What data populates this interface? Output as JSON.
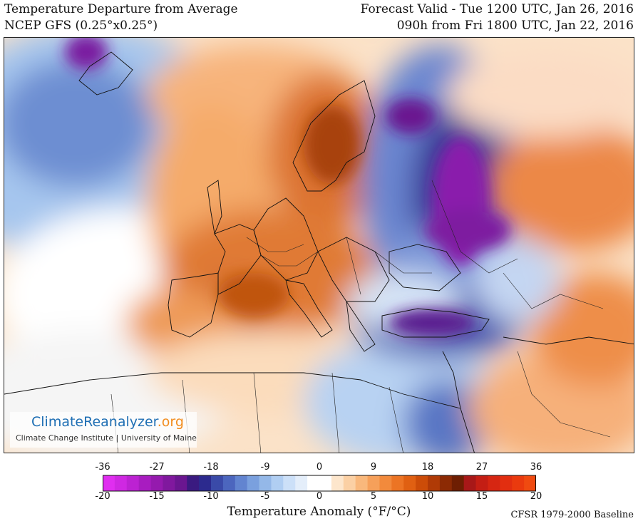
{
  "header": {
    "title": "Temperature Departure from Average",
    "model": "NCEP GFS (0.25°x0.25°)",
    "valid": "Forecast Valid - Tue 1200 UTC, Jan 26, 2016",
    "lead": "090h from Fri 1800 UTC, Jan 22, 2016"
  },
  "logo": {
    "main": "ClimateReanalyzer",
    "domain": ".org",
    "sub": "Climate Change Institute | University of Maine"
  },
  "colorbar": {
    "title": "Temperature Anomaly (°F/°C)",
    "fahrenheit_labels": [
      "-36",
      "-27",
      "-18",
      "-9",
      "0",
      "9",
      "18",
      "27",
      "36"
    ],
    "celsius_labels": [
      "-20",
      "-15",
      "-10",
      "-5",
      "0",
      "5",
      "10",
      "15",
      "20"
    ],
    "colors": [
      "#e02ef0",
      "#cf28e2",
      "#bc22d2",
      "#a81cc0",
      "#951aae",
      "#80189e",
      "#6a1690",
      "#3a1a80",
      "#2c2a8e",
      "#3a4aa8",
      "#4c66be",
      "#6284d0",
      "#7aa0de",
      "#94b8e8",
      "#b0cef2",
      "#cce0f8",
      "#e4eefa",
      "#ffffff",
      "#ffffff",
      "#fde6cc",
      "#fbd0a4",
      "#f9b87c",
      "#f6a05a",
      "#f28a3c",
      "#ec7424",
      "#e06012",
      "#cc4c08",
      "#b03a06",
      "#8c2a04",
      "#6e1e02",
      "#a81818",
      "#c41e14",
      "#d62612",
      "#e22e10",
      "#ea3a0e",
      "#f04a10"
    ],
    "baseline": "CFSR 1979-2000 Baseline"
  },
  "map": {
    "region": "Europe",
    "variable": "2m temperature anomaly"
  }
}
